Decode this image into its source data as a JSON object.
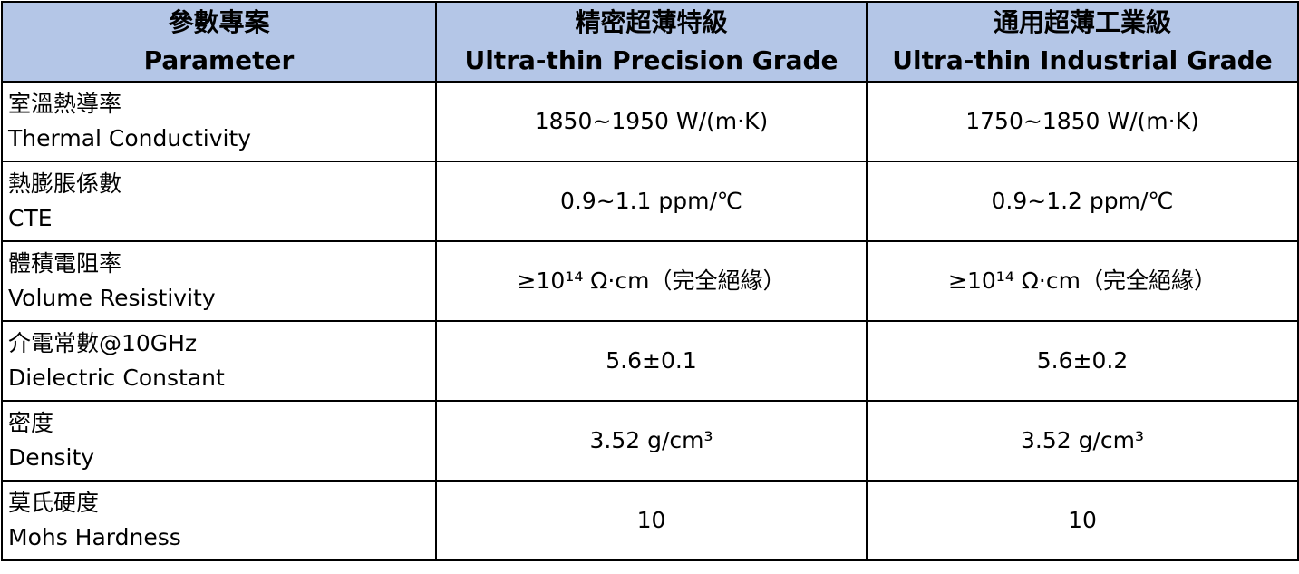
{
  "table": {
    "header": [
      [
        "參數專案",
        "Parameter"
      ],
      [
        "精密超薄特級",
        "Ultra-thin Precision Grade"
      ],
      [
        "通用超薄工業級",
        "Ultra-thin Industrial Grade"
      ]
    ],
    "rows": [
      [
        [
          "室溫熱導率",
          "Thermal Conductivity"
        ],
        "1850~1950 W/(m·K)",
        "1750~1850 W/(m·K)"
      ],
      [
        [
          "熱膨脹係數",
          "CTE"
        ],
        "0.9~1.1 ppm/℃",
        "0.9~1.2 ppm/℃"
      ],
      [
        [
          "體積電阻率",
          "Volume Resistivity"
        ],
        "≥10¹⁴ Ω·cm（完全絕緣）",
        "≥10¹⁴ Ω·cm（完全絕緣）"
      ],
      [
        [
          "介電常數@10GHz",
          "Dielectric Constant"
        ],
        "5.6±0.1",
        "5.6±0.2"
      ],
      [
        [
          "密度",
          "Density"
        ],
        "3.52 g/cm³",
        "3.52 g/cm³"
      ],
      [
        [
          "莫氏硬度",
          "Mohs Hardness"
        ],
        "10",
        "10"
      ]
    ]
  }
}
